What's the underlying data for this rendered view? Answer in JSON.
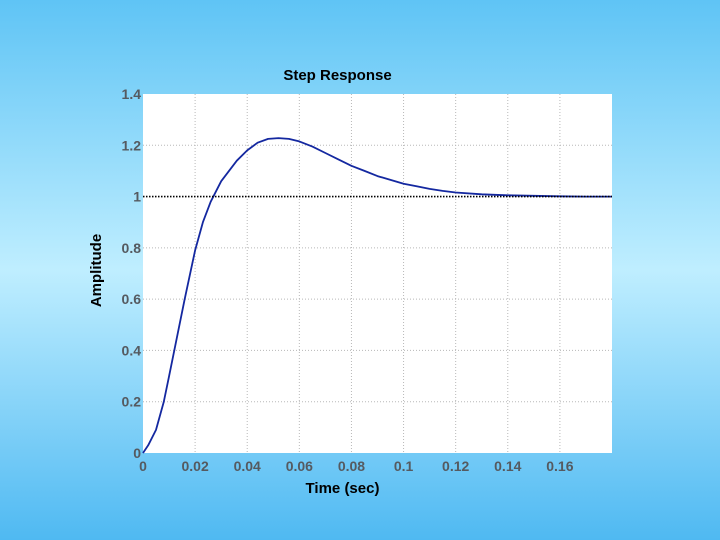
{
  "colors": {
    "background_top": "#5fc4f5",
    "background_mid": "#bfeeff",
    "plot_background": "#ffffff",
    "response_line": "#1428a0",
    "reference_line": "#000000",
    "tick_text": "#555a60"
  },
  "chart_data": {
    "type": "line",
    "title": "Step Response",
    "xlabel": "Time (sec)",
    "ylabel": "Amplitude",
    "xlim": [
      0,
      0.18
    ],
    "ylim": [
      0,
      1.4
    ],
    "xticks": [
      0,
      0.02,
      0.04,
      0.06,
      0.08,
      0.1,
      0.12,
      0.14,
      0.16
    ],
    "xtick_labels": [
      "0",
      "0.02",
      "0.04",
      "0.06",
      "0.08",
      "0.1",
      "0.12",
      "0.14",
      "0.16"
    ],
    "yticks": [
      0,
      0.2,
      0.4,
      0.6,
      0.8,
      1,
      1.2,
      1.4
    ],
    "ytick_labels": [
      "0",
      "0.2",
      "0.4",
      "0.6",
      "0.8",
      "1",
      "1.2",
      "1.4"
    ],
    "grid": true,
    "series": [
      {
        "style": "solid",
        "x": [
          0,
          0.002,
          0.005,
          0.008,
          0.01,
          0.013,
          0.016,
          0.02,
          0.023,
          0.026,
          0.03,
          0.033,
          0.036,
          0.04,
          0.044,
          0.048,
          0.052,
          0.056,
          0.06,
          0.065,
          0.07,
          0.075,
          0.08,
          0.085,
          0.09,
          0.095,
          0.1,
          0.105,
          0.11,
          0.115,
          0.12,
          0.13,
          0.14,
          0.15,
          0.16,
          0.17,
          0.18
        ],
        "y": [
          0,
          0.03,
          0.09,
          0.2,
          0.3,
          0.45,
          0.6,
          0.79,
          0.9,
          0.98,
          1.06,
          1.1,
          1.14,
          1.18,
          1.21,
          1.225,
          1.228,
          1.225,
          1.215,
          1.195,
          1.17,
          1.145,
          1.12,
          1.1,
          1.08,
          1.065,
          1.05,
          1.04,
          1.03,
          1.022,
          1.016,
          1.009,
          1.005,
          1.003,
          1.001,
          1.0,
          1.0
        ]
      },
      {
        "style": "dotted",
        "x": [
          0,
          0.18
        ],
        "y": [
          1,
          1
        ]
      }
    ]
  }
}
